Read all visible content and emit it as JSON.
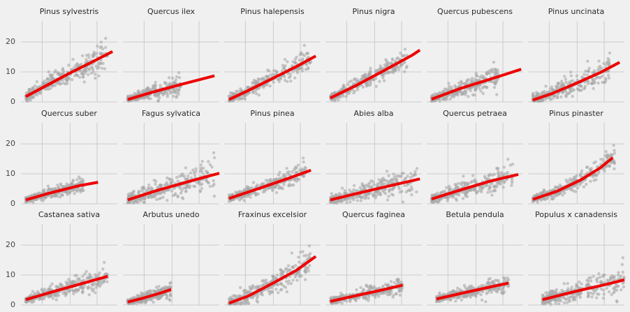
{
  "chart_data": {
    "type": "scatter",
    "layout": {
      "rows": 3,
      "cols": 6,
      "sharey": true
    },
    "ylim": [
      0,
      27
    ],
    "yticks": [
      0,
      10,
      20
    ],
    "xticks_labeled": false,
    "grid": true,
    "colors": {
      "background": "#f0f0f0",
      "grid": "#cbcbcb",
      "points": "#a8a8a8",
      "fit_line": "#ee0000"
    },
    "panels": [
      {
        "title": "Pinus sylvestris",
        "xlim": [
          0,
          100
        ],
        "fit": [
          [
            5,
            1.8
          ],
          [
            25,
            5.2
          ],
          [
            50,
            9.5
          ],
          [
            75,
            13.5
          ],
          [
            95,
            16.8
          ]
        ],
        "cloud": {
          "x_range": [
            5,
            90
          ],
          "noise": 2.6
        }
      },
      {
        "title": "Quercus ilex",
        "xlim": [
          0,
          100
        ],
        "fit": [
          [
            5,
            0.8
          ],
          [
            30,
            3.2
          ],
          [
            60,
            5.8
          ],
          [
            95,
            8.7
          ]
        ],
        "cloud": {
          "x_range": [
            5,
            60
          ],
          "noise": 1.6
        }
      },
      {
        "title": "Pinus halepensis",
        "xlim": [
          0,
          100
        ],
        "fit": [
          [
            5,
            0.8
          ],
          [
            25,
            3.8
          ],
          [
            50,
            7.8
          ],
          [
            75,
            11.8
          ],
          [
            95,
            15.3
          ]
        ],
        "cloud": {
          "x_range": [
            5,
            90
          ],
          "noise": 2.2
        }
      },
      {
        "title": "Pinus nigra",
        "xlim": [
          0,
          100
        ],
        "fit": [
          [
            5,
            1.3
          ],
          [
            30,
            5.2
          ],
          [
            60,
            10.3
          ],
          [
            90,
            15.6
          ],
          [
            98,
            17.3
          ]
        ],
        "cloud": {
          "x_range": [
            5,
            85
          ],
          "noise": 2.0
        }
      },
      {
        "title": "Quercus pubescens",
        "xlim": [
          0,
          100
        ],
        "fit": [
          [
            5,
            0.9
          ],
          [
            35,
            4.5
          ],
          [
            70,
            8.0
          ],
          [
            98,
            10.9
          ]
        ],
        "cloud": {
          "x_range": [
            5,
            75
          ],
          "noise": 2.0
        }
      },
      {
        "title": "Pinus uncinata",
        "xlim": [
          0,
          100
        ],
        "fit": [
          [
            5,
            0.6
          ],
          [
            25,
            2.8
          ],
          [
            50,
            6.2
          ],
          [
            75,
            9.8
          ],
          [
            95,
            13.2
          ]
        ],
        "cloud": {
          "x_range": [
            5,
            85
          ],
          "noise": 2.4
        }
      },
      {
        "title": "Quercus suber",
        "xlim": [
          0,
          100
        ],
        "fit": [
          [
            5,
            1.3
          ],
          [
            30,
            3.6
          ],
          [
            60,
            6.0
          ],
          [
            80,
            7.2
          ]
        ],
        "cloud": {
          "x_range": [
            5,
            65
          ],
          "noise": 1.3
        }
      },
      {
        "title": "Fagus sylvatica",
        "xlim": [
          0,
          100
        ],
        "fit": [
          [
            5,
            1.3
          ],
          [
            35,
            4.4
          ],
          [
            70,
            7.6
          ],
          [
            100,
            10.2
          ]
        ],
        "cloud": {
          "x_range": [
            5,
            95
          ],
          "noise": 2.8
        }
      },
      {
        "title": "Pinus pinea",
        "xlim": [
          0,
          100
        ],
        "fit": [
          [
            5,
            1.8
          ],
          [
            35,
            5.0
          ],
          [
            65,
            8.3
          ],
          [
            90,
            11.2
          ]
        ],
        "cloud": {
          "x_range": [
            5,
            85
          ],
          "noise": 1.8
        }
      },
      {
        "title": "Abies alba",
        "xlim": [
          0,
          100
        ],
        "fit": [
          [
            5,
            1.3
          ],
          [
            40,
            4.0
          ],
          [
            75,
            6.6
          ],
          [
            98,
            8.3
          ]
        ],
        "cloud": {
          "x_range": [
            5,
            95
          ],
          "noise": 2.4
        }
      },
      {
        "title": "Quercus petraea",
        "xlim": [
          0,
          100
        ],
        "fit": [
          [
            5,
            1.6
          ],
          [
            35,
            4.6
          ],
          [
            65,
            7.5
          ],
          [
            95,
            9.8
          ]
        ],
        "cloud": {
          "x_range": [
            5,
            90
          ],
          "noise": 2.2
        }
      },
      {
        "title": "Pinus pinaster",
        "xlim": [
          0,
          100
        ],
        "fit": [
          [
            5,
            1.5
          ],
          [
            30,
            4.2
          ],
          [
            55,
            8.0
          ],
          [
            75,
            12.0
          ],
          [
            88,
            15.4
          ]
        ],
        "cloud": {
          "x_range": [
            5,
            90
          ],
          "noise": 1.8
        }
      },
      {
        "title": "Castanea sativa",
        "xlim": [
          0,
          100
        ],
        "fit": [
          [
            5,
            1.8
          ],
          [
            35,
            4.6
          ],
          [
            65,
            7.3
          ],
          [
            90,
            9.6
          ]
        ],
        "cloud": {
          "x_range": [
            5,
            90
          ],
          "noise": 2.0
        }
      },
      {
        "title": "Arbutus unedo",
        "xlim": [
          0,
          100
        ],
        "fit": [
          [
            5,
            1.0
          ],
          [
            20,
            2.2
          ],
          [
            40,
            4.1
          ],
          [
            50,
            5.2
          ]
        ],
        "cloud": {
          "x_range": [
            5,
            50
          ],
          "noise": 1.3
        }
      },
      {
        "title": "Fraxinus excelsior",
        "xlim": [
          0,
          100
        ],
        "fit": [
          [
            5,
            0.6
          ],
          [
            25,
            3.0
          ],
          [
            50,
            7.2
          ],
          [
            75,
            11.6
          ],
          [
            95,
            16.2
          ]
        ],
        "cloud": {
          "x_range": [
            5,
            90
          ],
          "noise": 2.4
        }
      },
      {
        "title": "Quercus faginea",
        "xlim": [
          0,
          100
        ],
        "fit": [
          [
            5,
            1.2
          ],
          [
            30,
            3.0
          ],
          [
            60,
            5.1
          ],
          [
            80,
            6.6
          ]
        ],
        "cloud": {
          "x_range": [
            5,
            80
          ],
          "noise": 1.5
        }
      },
      {
        "title": "Betula pendula",
        "xlim": [
          0,
          100
        ],
        "fit": [
          [
            10,
            2.0
          ],
          [
            40,
            4.2
          ],
          [
            70,
            6.3
          ],
          [
            85,
            7.3
          ]
        ],
        "cloud": {
          "x_range": [
            10,
            85
          ],
          "noise": 1.6
        }
      },
      {
        "title": "Populus x canadensis",
        "xlim": [
          0,
          100
        ],
        "fit": [
          [
            15,
            1.8
          ],
          [
            50,
            4.6
          ],
          [
            80,
            6.8
          ],
          [
            100,
            8.4
          ]
        ],
        "cloud": {
          "x_range": [
            15,
            100
          ],
          "noise": 2.6
        }
      }
    ]
  }
}
